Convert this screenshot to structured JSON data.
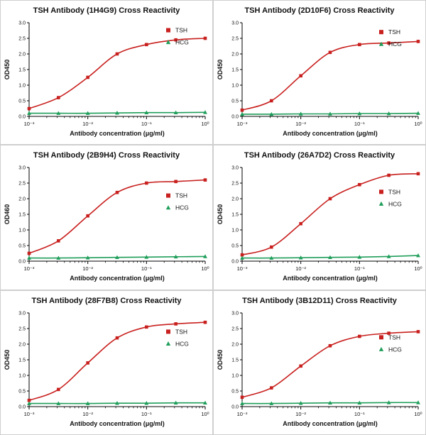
{
  "page": {
    "background": "#ffffff",
    "panel_border": "#cfcfcf"
  },
  "colors": {
    "tsh": "#c8201e",
    "hcg": "#1f9e5a",
    "axis": "#000000"
  },
  "chart_data": [
    {
      "type": "line",
      "title": "TSH Antibody (1H4G9) Cross Reactivity",
      "xlabel": "Antibody concentration (μg/ml)",
      "ylabel": "OD450",
      "x_scale": "log",
      "xlim": [
        0.001,
        1
      ],
      "ylim": [
        0,
        3
      ],
      "yticks": [
        0.0,
        0.5,
        1.0,
        1.5,
        2.0,
        2.5,
        3.0
      ],
      "ytick_labels": [
        "0.0",
        "0.5",
        "1.0",
        "1.5",
        "2.0",
        "2.5",
        "3.0"
      ],
      "xticks": [
        0.001,
        0.01,
        0.1,
        1
      ],
      "xtick_labels": [
        "10⁻³",
        "10⁻²",
        "10⁻¹",
        "10⁰"
      ],
      "legend_pos": "top-right",
      "legend_y": 0.08,
      "series": [
        {
          "name": "TSH",
          "color": "#c8201e",
          "marker": "square",
          "x": [
            0.001,
            0.00316,
            0.01,
            0.0316,
            0.1,
            0.316,
            1
          ],
          "y": [
            0.25,
            0.6,
            1.25,
            2.0,
            2.3,
            2.45,
            2.5
          ]
        },
        {
          "name": "HCG",
          "color": "#1f9e5a",
          "marker": "triangle",
          "x": [
            0.001,
            0.00316,
            0.01,
            0.0316,
            0.1,
            0.316,
            1
          ],
          "y": [
            0.1,
            0.1,
            0.1,
            0.11,
            0.12,
            0.12,
            0.13
          ]
        }
      ]
    },
    {
      "type": "line",
      "title": "TSH Antibody (2D10F6) Cross Reactivity",
      "xlabel": "Antibody concentration (μg/ml)",
      "ylabel": "OD450",
      "x_scale": "log",
      "xlim": [
        0.001,
        1
      ],
      "ylim": [
        0,
        3
      ],
      "yticks": [
        0.0,
        0.5,
        1.0,
        1.5,
        2.0,
        2.5,
        3.0
      ],
      "ytick_labels": [
        "0.0",
        "0.5",
        "1.0",
        "1.5",
        "2.0",
        "2.5",
        "3.0"
      ],
      "xticks": [
        0.001,
        0.01,
        0.1,
        1
      ],
      "xtick_labels": [
        "10⁻³",
        "10⁻²",
        "10⁻¹",
        "10⁰"
      ],
      "legend_pos": "top-right",
      "legend_y": 0.1,
      "series": [
        {
          "name": "TSH",
          "color": "#c8201e",
          "marker": "square",
          "x": [
            0.001,
            0.00316,
            0.01,
            0.0316,
            0.1,
            0.316,
            1
          ],
          "y": [
            0.2,
            0.5,
            1.3,
            2.05,
            2.3,
            2.35,
            2.4
          ]
        },
        {
          "name": "HCG",
          "color": "#1f9e5a",
          "marker": "triangle",
          "x": [
            0.001,
            0.00316,
            0.01,
            0.0316,
            0.1,
            0.316,
            1
          ],
          "y": [
            0.07,
            0.07,
            0.08,
            0.08,
            0.09,
            0.09,
            0.1
          ]
        }
      ]
    },
    {
      "type": "line",
      "title": "TSH Antibody (2B9H4) Cross Reactivity",
      "xlabel": "Antibody concentration (μg/ml)",
      "ylabel": "OD460",
      "x_scale": "log",
      "xlim": [
        0.001,
        1
      ],
      "ylim": [
        0,
        3
      ],
      "yticks": [
        0.0,
        0.5,
        1.0,
        1.5,
        2.0,
        2.5,
        3.0
      ],
      "ytick_labels": [
        "0.0",
        "0.5",
        "1.0",
        "1.5",
        "2.0",
        "2.5",
        "3.0"
      ],
      "xticks": [
        0.001,
        0.01,
        0.1,
        1
      ],
      "xtick_labels": [
        "10⁻³",
        "10⁻²",
        "10⁻¹",
        "10⁰"
      ],
      "legend_pos": "mid-right",
      "legend_y": 0.3,
      "series": [
        {
          "name": "TSH",
          "color": "#c8201e",
          "marker": "square",
          "x": [
            0.001,
            0.00316,
            0.01,
            0.0316,
            0.1,
            0.316,
            1
          ],
          "y": [
            0.25,
            0.65,
            1.45,
            2.2,
            2.5,
            2.55,
            2.6
          ]
        },
        {
          "name": "HCG",
          "color": "#1f9e5a",
          "marker": "triangle",
          "x": [
            0.001,
            0.00316,
            0.01,
            0.0316,
            0.1,
            0.316,
            1
          ],
          "y": [
            0.1,
            0.1,
            0.11,
            0.12,
            0.13,
            0.14,
            0.15
          ]
        }
      ]
    },
    {
      "type": "line",
      "title": "TSH Antibody (26A7D2) Cross Reactivity",
      "xlabel": "Antibody concentration (μg/ml)",
      "ylabel": "OD450",
      "x_scale": "log",
      "xlim": [
        0.001,
        1
      ],
      "ylim": [
        0,
        3
      ],
      "yticks": [
        0.0,
        0.5,
        1.0,
        1.5,
        2.0,
        2.5,
        3.0
      ],
      "ytick_labels": [
        "0.0",
        "0.5",
        "1.0",
        "1.5",
        "2.0",
        "2.5",
        "3.0"
      ],
      "xticks": [
        0.001,
        0.01,
        0.1,
        1
      ],
      "xtick_labels": [
        "10⁻³",
        "10⁻²",
        "10⁻¹",
        "10⁰"
      ],
      "legend_pos": "mid-right",
      "legend_y": 0.26,
      "series": [
        {
          "name": "TSH",
          "color": "#c8201e",
          "marker": "square",
          "x": [
            0.001,
            0.00316,
            0.01,
            0.0316,
            0.1,
            0.316,
            1
          ],
          "y": [
            0.2,
            0.45,
            1.2,
            2.0,
            2.45,
            2.75,
            2.8
          ]
        },
        {
          "name": "HCG",
          "color": "#1f9e5a",
          "marker": "triangle",
          "x": [
            0.001,
            0.00316,
            0.01,
            0.0316,
            0.1,
            0.316,
            1
          ],
          "y": [
            0.1,
            0.1,
            0.11,
            0.12,
            0.13,
            0.15,
            0.18
          ]
        }
      ]
    },
    {
      "type": "line",
      "title": "TSH Antibody (28F7B8) Cross Reactivity",
      "xlabel": "Antibody concentration (μg/ml)",
      "ylabel": "OD450",
      "x_scale": "log",
      "xlim": [
        0.001,
        1
      ],
      "ylim": [
        0,
        3
      ],
      "yticks": [
        0.0,
        0.5,
        1.0,
        1.5,
        2.0,
        2.5,
        3.0
      ],
      "ytick_labels": [
        "0.0",
        "0.5",
        "1.0",
        "1.5",
        "2.0",
        "2.5",
        "3.0"
      ],
      "xticks": [
        0.001,
        0.01,
        0.1,
        1
      ],
      "xtick_labels": [
        "10⁻³",
        "10⁻²",
        "10⁻¹",
        "10⁰"
      ],
      "legend_pos": "mid-right",
      "legend_y": 0.2,
      "series": [
        {
          "name": "TSH",
          "color": "#c8201e",
          "marker": "square",
          "x": [
            0.001,
            0.00316,
            0.01,
            0.0316,
            0.1,
            0.316,
            1
          ],
          "y": [
            0.2,
            0.55,
            1.4,
            2.2,
            2.55,
            2.65,
            2.7
          ]
        },
        {
          "name": "HCG",
          "color": "#1f9e5a",
          "marker": "triangle",
          "x": [
            0.001,
            0.00316,
            0.01,
            0.0316,
            0.1,
            0.316,
            1
          ],
          "y": [
            0.1,
            0.1,
            0.1,
            0.11,
            0.11,
            0.12,
            0.12
          ]
        }
      ]
    },
    {
      "type": "line",
      "title": "TSH Antibody (3B12D11) Cross Reactivity",
      "xlabel": "Antibody concentration (μg/ml)",
      "ylabel": "OD450",
      "x_scale": "log",
      "xlim": [
        0.001,
        1
      ],
      "ylim": [
        0,
        3
      ],
      "yticks": [
        0.0,
        0.5,
        1.0,
        1.5,
        2.0,
        2.5,
        3.0
      ],
      "ytick_labels": [
        "0.0",
        "0.5",
        "1.0",
        "1.5",
        "2.0",
        "2.5",
        "3.0"
      ],
      "xticks": [
        0.001,
        0.01,
        0.1,
        1
      ],
      "xtick_labels": [
        "10⁻³",
        "10⁻²",
        "10⁻¹",
        "10⁰"
      ],
      "legend_pos": "mid-right",
      "legend_y": 0.26,
      "series": [
        {
          "name": "TSH",
          "color": "#c8201e",
          "marker": "square",
          "x": [
            0.001,
            0.00316,
            0.01,
            0.0316,
            0.1,
            0.316,
            1
          ],
          "y": [
            0.3,
            0.6,
            1.3,
            1.95,
            2.25,
            2.35,
            2.4
          ]
        },
        {
          "name": "HCG",
          "color": "#1f9e5a",
          "marker": "triangle",
          "x": [
            0.001,
            0.00316,
            0.01,
            0.0316,
            0.1,
            0.316,
            1
          ],
          "y": [
            0.1,
            0.1,
            0.11,
            0.12,
            0.12,
            0.13,
            0.13
          ]
        }
      ]
    }
  ]
}
